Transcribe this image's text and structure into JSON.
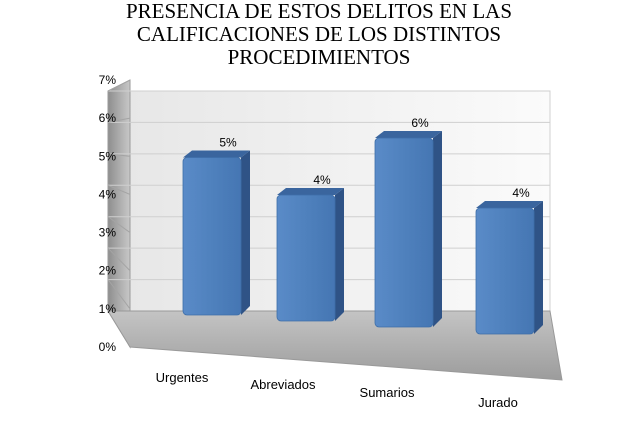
{
  "chart_data": {
    "type": "bar",
    "title_lines": [
      "PRESENCIA DE ESTOS DELITOS EN LAS",
      "CALIFICACIONES DE LOS DISTINTOS",
      "PROCEDIMIENTOS"
    ],
    "categories": [
      "Urgentes",
      "Abreviados",
      "Sumarios",
      "Jurado"
    ],
    "values": [
      5,
      4,
      6,
      4
    ],
    "data_labels": [
      "5%",
      "4%",
      "6%",
      "4%"
    ],
    "y_ticks": [
      "0%",
      "1%",
      "2%",
      "3%",
      "4%",
      "5%",
      "6%",
      "7%"
    ],
    "ylim": [
      0,
      7
    ],
    "grid": true,
    "legend": "none",
    "three_d": true,
    "colors": {
      "bar_front": "#4f81bd",
      "bar_side": "#2f5386",
      "bar_top": "#3a659e",
      "wall": "#f7f7f7",
      "side_wall": "#b4b4b4",
      "floor": "#a6a6a6"
    }
  }
}
